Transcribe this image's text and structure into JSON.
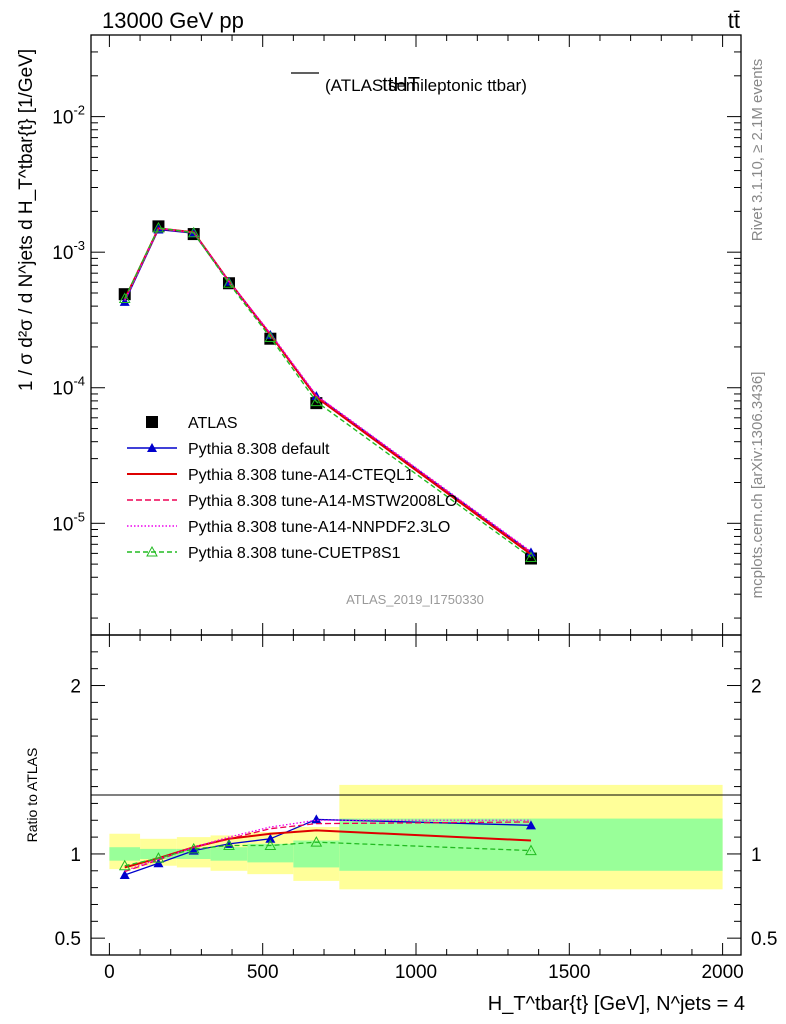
{
  "header": {
    "energy": "13000 GeV pp",
    "process": "tt̄"
  },
  "side_labels": {
    "rivet": "Rivet 3.1.10, ≥ 2.1M events",
    "mcplots": "mcplots.cern.ch [arXiv:1306.3436]"
  },
  "chart_data": [
    {
      "type": "line",
      "title": "tt̄HT (ATLAS semileptonic ttbar)",
      "title_main": "ttHT",
      "title_sub": "(ATLAS semileptonic ttbar)",
      "analysis": "ATLAS_2019_I1750330",
      "ylabel": "1 / σ d²σ / d N^jets d H_T^tbar{t} [1/GeV]",
      "xlabel": "H_T^tbar{t} [GeV], N^jets = 4",
      "yscale": "log",
      "xlim": [
        -60,
        2060
      ],
      "ylim": [
        1.5e-06,
        0.04
      ],
      "yticks": [
        {
          "v": 0.01,
          "b": "10",
          "e": "-2"
        },
        {
          "v": 0.001,
          "b": "10",
          "e": "-3"
        },
        {
          "v": 0.0001,
          "b": "10",
          "e": "-4"
        },
        {
          "v": 1e-05,
          "b": "10",
          "e": "-5"
        }
      ],
      "legend_position": "left-middle",
      "x": [
        50,
        160,
        275,
        390,
        525,
        675,
        1375
      ],
      "series": [
        {
          "name": "ATLAS",
          "color": "#000000",
          "marker": "square",
          "values": [
            0.00049,
            0.00155,
            0.00136,
            0.00059,
            0.00023,
            7.7e-05,
            5.5e-06
          ]
        },
        {
          "name": "Pythia 8.308 default",
          "color": "#0000cc",
          "marker": "triangle",
          "dash": "",
          "values": [
            0.00043,
            0.00147,
            0.00138,
            0.000605,
            0.000245,
            8.7e-05,
            6.1e-06
          ]
        },
        {
          "name": "Pythia 8.308 tune-A14-CTEQL1",
          "color": "#dd0000",
          "marker": "none",
          "dash": "",
          "values": [
            0.00045,
            0.0015,
            0.0014,
            0.00061,
            0.000247,
            8.5e-05,
            5.9e-06
          ]
        },
        {
          "name": "Pythia 8.308 tune-A14-MSTW2008LO",
          "color": "#ee0055",
          "marker": "none",
          "dash": "6,3",
          "values": [
            0.00044,
            0.00149,
            0.00139,
            0.000608,
            0.000249,
            8.7e-05,
            6.1e-06
          ]
        },
        {
          "name": "Pythia 8.308 tune-A14-NNPDF2.3LO",
          "color": "#ee00ee",
          "marker": "none",
          "dash": "1.5,2",
          "values": [
            0.00044,
            0.0015,
            0.0014,
            0.00061,
            0.000252,
            8.8e-05,
            6.2e-06
          ]
        },
        {
          "name": "Pythia 8.308 tune-CUETP8S1",
          "color": "#22bb22",
          "marker": "open-triangle",
          "dash": "5,3",
          "values": [
            0.000455,
            0.00151,
            0.00139,
            0.00059,
            0.000235,
            7.9e-05,
            5.6e-06
          ]
        }
      ]
    },
    {
      "type": "line",
      "ylabel": "Ratio to ATLAS",
      "ylim": [
        0.4,
        2.3
      ],
      "yticks": [
        {
          "v": 0.5,
          "l": "0.5"
        },
        {
          "v": 1,
          "l": "1"
        },
        {
          "v": 2,
          "l": "2"
        }
      ],
      "xticks": [
        {
          "v": 0,
          "l": "0"
        },
        {
          "v": 500,
          "l": "500"
        },
        {
          "v": 1000,
          "l": "1000"
        },
        {
          "v": 1500,
          "l": "1500"
        },
        {
          "v": 2000,
          "l": "2000"
        }
      ],
      "bands": [
        {
          "x0": 0,
          "x1": 100,
          "y_lo": 0.96,
          "y_hi": 1.04,
          "o_lo": 0.91,
          "o_hi": 1.12
        },
        {
          "x0": 100,
          "x1": 220,
          "y_lo": 0.97,
          "y_hi": 1.03,
          "o_lo": 0.93,
          "o_hi": 1.09
        },
        {
          "x0": 220,
          "x1": 330,
          "y_lo": 0.97,
          "y_hi": 1.03,
          "o_lo": 0.92,
          "o_hi": 1.1
        },
        {
          "x0": 330,
          "x1": 450,
          "y_lo": 0.96,
          "y_hi": 1.04,
          "o_lo": 0.9,
          "o_hi": 1.11
        },
        {
          "x0": 450,
          "x1": 600,
          "y_lo": 0.95,
          "y_hi": 1.06,
          "o_lo": 0.88,
          "o_hi": 1.13
        },
        {
          "x0": 600,
          "x1": 750,
          "y_lo": 0.92,
          "y_hi": 1.08,
          "o_lo": 0.84,
          "o_hi": 1.16
        },
        {
          "x0": 750,
          "x1": 2000,
          "y_lo": 0.9,
          "y_hi": 1.21,
          "o_lo": 0.79,
          "o_hi": 1.41
        }
      ],
      "series": [
        {
          "name": "Pythia 8.308 default",
          "values": [
            0.875,
            0.945,
            1.02,
            1.06,
            1.09,
            1.205,
            1.17
          ]
        },
        {
          "name": "Pythia 8.308 tune-A14-CTEQL1",
          "values": [
            0.92,
            0.975,
            1.04,
            1.09,
            1.12,
            1.14,
            1.08
          ]
        },
        {
          "name": "Pythia 8.308 tune-A14-MSTW2008LO",
          "values": [
            0.895,
            0.965,
            1.04,
            1.09,
            1.15,
            1.18,
            1.19
          ]
        },
        {
          "name": "Pythia 8.308 tune-A14-NNPDF2.3LO",
          "values": [
            0.9,
            0.97,
            1.04,
            1.1,
            1.16,
            1.2,
            1.2
          ]
        },
        {
          "name": "Pythia 8.308 tune-CUETP8S1",
          "values": [
            0.93,
            0.975,
            1.03,
            1.05,
            1.05,
            1.07,
            1.02
          ]
        }
      ]
    }
  ]
}
